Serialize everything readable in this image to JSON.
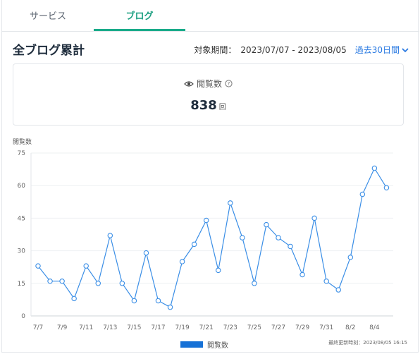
{
  "tabs": [
    {
      "label": "サービス"
    },
    {
      "label": "ブログ"
    }
  ],
  "heading": "全ブログ累計",
  "period": {
    "label": "対象期間：",
    "range": "2023/07/07 - 2023/08/05",
    "selector": "過去30日間"
  },
  "summary": {
    "title": "閲覧数",
    "value": "838",
    "unit": "回"
  },
  "colors": {
    "accent": "#1aab8a",
    "line": "#3a8ee6",
    "legend": "#1671d6",
    "link": "#2a7ae2"
  },
  "chart_data": {
    "type": "line",
    "ylabel": "閲覧数",
    "ylim": [
      0,
      75
    ],
    "yticks": [
      0,
      15,
      30,
      45,
      60,
      75
    ],
    "x": [
      "7/7",
      "7/8",
      "7/9",
      "7/10",
      "7/11",
      "7/12",
      "7/13",
      "7/14",
      "7/15",
      "7/16",
      "7/17",
      "7/18",
      "7/19",
      "7/20",
      "7/21",
      "7/22",
      "7/23",
      "7/24",
      "7/25",
      "7/26",
      "7/27",
      "7/28",
      "7/29",
      "7/30",
      "7/31",
      "8/1",
      "8/2",
      "8/3",
      "8/4",
      "8/5"
    ],
    "xtick_labels": [
      "7/7",
      "7/9",
      "7/11",
      "7/13",
      "7/15",
      "7/17",
      "7/19",
      "7/21",
      "7/23",
      "7/25",
      "7/27",
      "7/29",
      "7/31",
      "8/2",
      "8/4"
    ],
    "series": [
      {
        "name": "閲覧数",
        "values": [
          23,
          16,
          16,
          8,
          23,
          15,
          37,
          15,
          7,
          29,
          7,
          4,
          25,
          33,
          44,
          21,
          52,
          36,
          15,
          42,
          36,
          32,
          19,
          45,
          16,
          12,
          27,
          56,
          68,
          59
        ]
      }
    ],
    "legend_position": "bottom",
    "grid": true
  },
  "footer": {
    "updated": "最終更新時刻：2023/08/05 16:15"
  }
}
